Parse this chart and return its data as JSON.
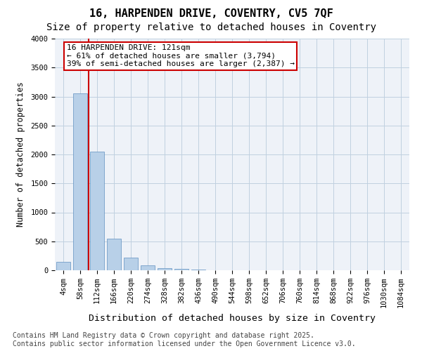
{
  "title": "16, HARPENDEN DRIVE, COVENTRY, CV5 7QF",
  "subtitle": "Size of property relative to detached houses in Coventry",
  "xlabel": "Distribution of detached houses by size in Coventry",
  "ylabel": "Number of detached properties",
  "bar_color": "#b8d0e8",
  "bar_edge_color": "#6090c0",
  "grid_color": "#c0d0e0",
  "background_color": "#eef2f8",
  "bins": [
    "4sqm",
    "58sqm",
    "112sqm",
    "166sqm",
    "220sqm",
    "274sqm",
    "328sqm",
    "382sqm",
    "436sqm",
    "490sqm",
    "544sqm",
    "598sqm",
    "652sqm",
    "706sqm",
    "760sqm",
    "814sqm",
    "868sqm",
    "922sqm",
    "976sqm",
    "1030sqm",
    "1084sqm"
  ],
  "values": [
    150,
    3050,
    2050,
    540,
    220,
    80,
    40,
    20,
    10,
    5,
    5,
    3,
    2,
    2,
    1,
    1,
    1,
    0,
    0,
    0,
    0
  ],
  "ylim": [
    0,
    4000
  ],
  "annotation_text": "16 HARPENDEN DRIVE: 121sqm\n← 61% of detached houses are smaller (3,794)\n39% of semi-detached houses are larger (2,387) →",
  "vline_color": "#cc0000",
  "annotation_box_edge_color": "#cc0000",
  "footer_text": "Contains HM Land Registry data © Crown copyright and database right 2025.\nContains public sector information licensed under the Open Government Licence v3.0.",
  "title_fontsize": 11,
  "subtitle_fontsize": 10,
  "xlabel_fontsize": 9.5,
  "ylabel_fontsize": 8.5,
  "tick_fontsize": 7.5,
  "annotation_fontsize": 8,
  "footer_fontsize": 7
}
